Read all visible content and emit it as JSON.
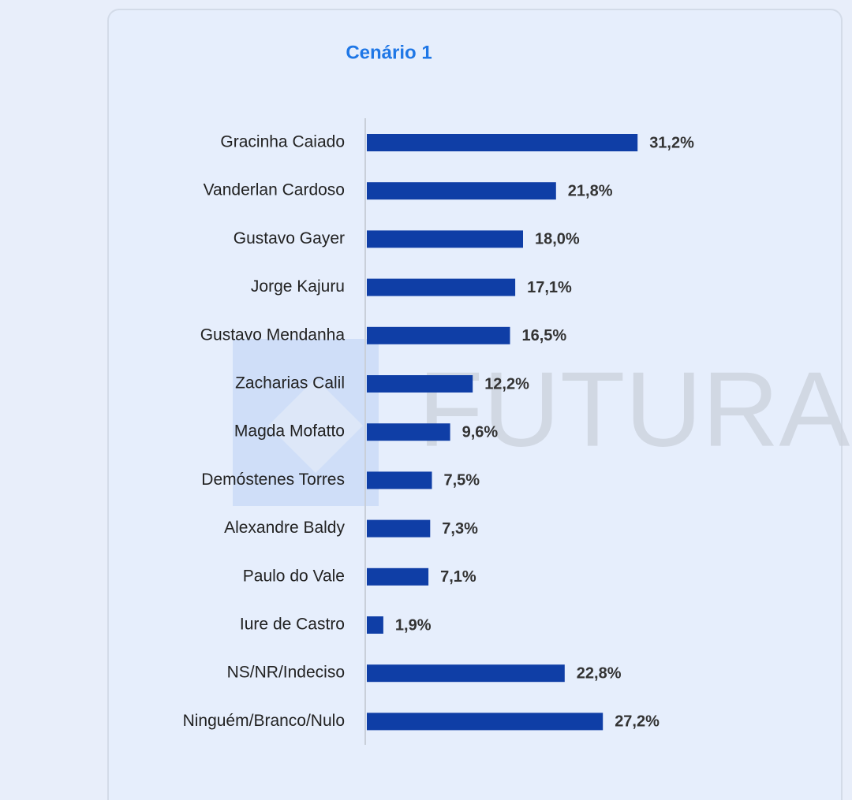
{
  "chart_data": {
    "type": "bar",
    "orientation": "horizontal",
    "title": "Cenário 1",
    "categories": [
      "Gracinha Caiado",
      "Vanderlan Cardoso",
      "Gustavo Gayer",
      "Jorge Kajuru",
      "Gustavo Mendanha",
      "Zacharias Calil",
      "Magda Mofatto",
      "Demóstenes Torres",
      "Alexandre Baldy",
      "Paulo do Vale",
      "Iure de Castro",
      "NS/NR/Indeciso",
      "Ninguém/Branco/Nulo"
    ],
    "values": [
      31.2,
      21.8,
      18.0,
      17.1,
      16.5,
      12.2,
      9.6,
      7.5,
      7.3,
      7.1,
      1.9,
      22.8,
      27.2
    ],
    "value_labels": [
      "31,2%",
      "21,8%",
      "18,0%",
      "17,1%",
      "16,5%",
      "12,2%",
      "9,6%",
      "7,5%",
      "7,3%",
      "7,1%",
      "1,9%",
      "22,8%",
      "27,2%"
    ],
    "color": "#0f3ea6",
    "watermark": "FUTURA"
  }
}
